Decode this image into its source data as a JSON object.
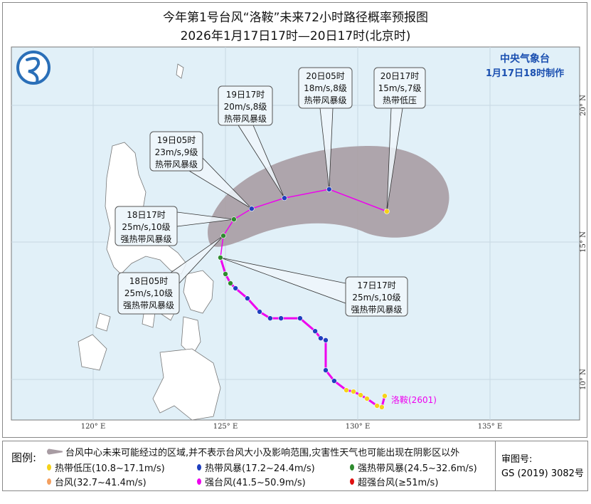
{
  "title": "今年第1号台风“洛鞍”未来72小时路径概率预报图",
  "subtitle": "2026年1月17日17时—20日17时(北京时)",
  "agency": {
    "name": "中央气象台",
    "issued": "1月17日18时制作"
  },
  "typhoon_label": "洛鞍(2601)",
  "axes": {
    "lon_labels": [
      "120° E",
      "125° E",
      "130° E",
      "135° E"
    ],
    "lat_labels": [
      "20° N",
      "15° N",
      "10° N"
    ]
  },
  "colors": {
    "sea": "#e1f0f8",
    "land": "#ffffff",
    "track": "#ee00ee",
    "cone": "#a89ca3",
    "td": "#f5d21a",
    "ts": "#1f3fbf",
    "sts": "#2e8b2e",
    "ty": "#f4a060",
    "sty": "#ee00ee",
    "super": "#e01010"
  },
  "past_track": [
    {
      "lon": 131.02,
      "lat": 9.37,
      "cat": "td"
    },
    {
      "lon": 130.91,
      "lat": 8.96,
      "cat": "td"
    },
    {
      "lon": 130.73,
      "lat": 9.01,
      "cat": "td"
    },
    {
      "lon": 130.35,
      "lat": 9.27,
      "cat": "td"
    },
    {
      "lon": 130.11,
      "lat": 9.4,
      "cat": "td"
    },
    {
      "lon": 129.84,
      "lat": 9.53,
      "cat": "td"
    },
    {
      "lon": 129.57,
      "lat": 9.58,
      "cat": "td"
    },
    {
      "lon": 129.11,
      "lat": 9.92,
      "cat": "ts"
    },
    {
      "lon": 128.79,
      "lat": 10.31,
      "cat": "ts"
    },
    {
      "lon": 128.79,
      "lat": 11.41,
      "cat": "ts"
    },
    {
      "lon": 128.6,
      "lat": 11.48,
      "cat": "ts"
    },
    {
      "lon": 128.39,
      "lat": 11.74,
      "cat": "ts"
    },
    {
      "lon": 127.82,
      "lat": 12.21,
      "cat": "ts"
    },
    {
      "lon": 127.1,
      "lat": 12.21,
      "cat": "ts"
    },
    {
      "lon": 126.69,
      "lat": 12.21,
      "cat": "ts"
    },
    {
      "lon": 126.29,
      "lat": 12.45,
      "cat": "ts"
    },
    {
      "lon": 125.83,
      "lat": 12.94,
      "cat": "ts"
    },
    {
      "lon": 125.38,
      "lat": 13.31,
      "cat": "ts"
    },
    {
      "lon": 125.19,
      "lat": 13.49,
      "cat": "sts"
    },
    {
      "lon": 125.0,
      "lat": 13.83,
      "cat": "sts"
    },
    {
      "lon": 124.81,
      "lat": 14.43,
      "cat": "sts"
    }
  ],
  "forecast": [
    {
      "lon": 124.81,
      "lat": 14.43,
      "cat": "sts",
      "time": "17日17时",
      "wind": "25m/s,10级",
      "level": "强热带风暴级"
    },
    {
      "lon": 124.92,
      "lat": 15.23,
      "cat": "sts",
      "time": "18日05时",
      "wind": "25m/s,10级",
      "level": "强热带风暴级"
    },
    {
      "lon": 125.32,
      "lat": 15.83,
      "cat": "sts",
      "time": "18日17时",
      "wind": "25m/s,10级",
      "level": "强热带风暴级"
    },
    {
      "lon": 125.99,
      "lat": 16.22,
      "cat": "ts",
      "time": "19日05时",
      "wind": "23m/s,9级",
      "level": "热带风暴级"
    },
    {
      "lon": 127.23,
      "lat": 16.61,
      "cat": "ts",
      "time": "19日17时",
      "wind": "20m/s,8级",
      "level": "热带风暴级"
    },
    {
      "lon": 128.92,
      "lat": 16.93,
      "cat": "ts",
      "time": "20日05时",
      "wind": "18m/s,8级",
      "level": "热带风暴级"
    },
    {
      "lon": 131.1,
      "lat": 16.12,
      "cat": "td",
      "time": "20日17时",
      "wind": "15m/s,7级",
      "level": "热带低压"
    }
  ],
  "legend": {
    "title": "图例:",
    "cone_text": "台风中心未来可能经过的区域,并不表示台风大小及影响范围,灾害性天气也可能出现在阴影区以外",
    "items": [
      {
        "cat": "td",
        "label": "热带低压(10.8~17.1m/s)"
      },
      {
        "cat": "ts",
        "label": "热带风暴(17.2~24.4m/s)"
      },
      {
        "cat": "sts",
        "label": "强热带风暴(24.5~32.6m/s)"
      },
      {
        "cat": "ty",
        "label": "台风(32.7~41.4m/s)"
      },
      {
        "cat": "sty",
        "label": "强台风(41.5~50.9m/s)"
      },
      {
        "cat": "super",
        "label": "超强台风(≥51m/s)"
      }
    ]
  },
  "approval": {
    "label": "审图号:",
    "number": "GS (2019) 3082号"
  }
}
